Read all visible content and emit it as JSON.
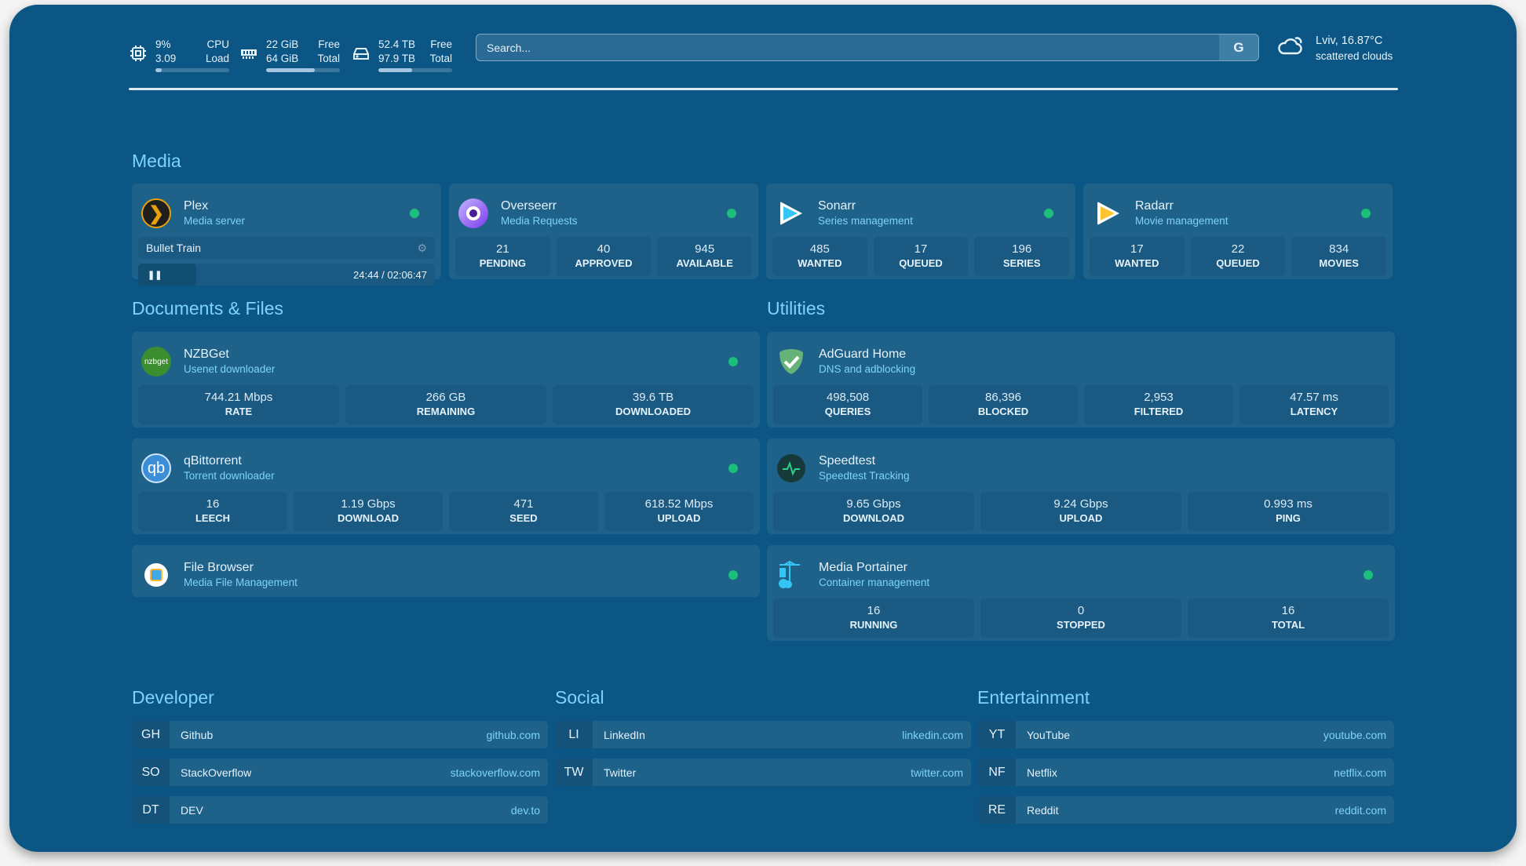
{
  "header": {
    "cpu": {
      "percent": "9%",
      "load": "3.09",
      "label1": "CPU",
      "label2": "Load",
      "fill": 0.09
    },
    "memory": {
      "free": "22 GiB",
      "total": "64 GiB",
      "label1": "Free",
      "label2": "Total",
      "fill": 0.66
    },
    "disk": {
      "free": "52.4 TB",
      "total": "97.9 TB",
      "label1": "Free",
      "label2": "Total",
      "fill": 0.46
    },
    "search": {
      "placeholder": "Search...",
      "engine_label": "G"
    },
    "weather": {
      "location_temp": "Lviv, 16.87°C",
      "condition": "scattered clouds",
      "icon": "cloud-sun-icon"
    }
  },
  "colors": {
    "background": "#0b5684",
    "card": "#1e6189",
    "accent": "#7dd3fc",
    "status_online": "#1bbf7a"
  },
  "sections": {
    "media": "Media",
    "documents": "Documents & Files",
    "utilities": "Utilities",
    "developer": "Developer",
    "social": "Social",
    "entertainment": "Entertainment"
  },
  "plex": {
    "name": "Plex",
    "desc": "Media server",
    "now_playing": "Bullet Train",
    "time": "24:44 / 02:06:47",
    "progress": 0.195
  },
  "media_cards": [
    {
      "name": "Overseerr",
      "desc": "Media Requests",
      "stats": [
        {
          "v": "21",
          "l": "PENDING"
        },
        {
          "v": "40",
          "l": "APPROVED"
        },
        {
          "v": "945",
          "l": "AVAILABLE"
        }
      ]
    },
    {
      "name": "Sonarr",
      "desc": "Series management",
      "stats": [
        {
          "v": "485",
          "l": "WANTED"
        },
        {
          "v": "17",
          "l": "QUEUED"
        },
        {
          "v": "196",
          "l": "SERIES"
        }
      ]
    },
    {
      "name": "Radarr",
      "desc": "Movie management",
      "stats": [
        {
          "v": "17",
          "l": "WANTED"
        },
        {
          "v": "22",
          "l": "QUEUED"
        },
        {
          "v": "834",
          "l": "MOVIES"
        }
      ]
    }
  ],
  "doc_cards": [
    {
      "name": "NZBGet",
      "desc": "Usenet downloader",
      "icon_text": "nzbget",
      "stats": [
        {
          "v": "744.21 Mbps",
          "l": "RATE"
        },
        {
          "v": "266 GB",
          "l": "REMAINING"
        },
        {
          "v": "39.6 TB",
          "l": "DOWNLOADED"
        }
      ]
    },
    {
      "name": "qBittorrent",
      "desc": "Torrent downloader",
      "icon_text": "qb",
      "stats": [
        {
          "v": "16",
          "l": "LEECH"
        },
        {
          "v": "1.19 Gbps",
          "l": "DOWNLOAD"
        },
        {
          "v": "471",
          "l": "SEED"
        },
        {
          "v": "618.52 Mbps",
          "l": "UPLOAD"
        }
      ]
    },
    {
      "name": "File Browser",
      "desc": "Media File Management",
      "stats": []
    }
  ],
  "util_cards": [
    {
      "name": "AdGuard Home",
      "desc": "DNS and adblocking",
      "stats": [
        {
          "v": "498,508",
          "l": "QUERIES"
        },
        {
          "v": "86,396",
          "l": "BLOCKED"
        },
        {
          "v": "2,953",
          "l": "FILTERED"
        },
        {
          "v": "47.57 ms",
          "l": "LATENCY"
        }
      ]
    },
    {
      "name": "Speedtest",
      "desc": "Speedtest Tracking",
      "stats": [
        {
          "v": "9.65 Gbps",
          "l": "DOWNLOAD"
        },
        {
          "v": "9.24 Gbps",
          "l": "UPLOAD"
        },
        {
          "v": "0.993 ms",
          "l": "PING"
        }
      ]
    },
    {
      "name": "Media Portainer",
      "desc": "Container management",
      "stats": [
        {
          "v": "16",
          "l": "RUNNING"
        },
        {
          "v": "0",
          "l": "STOPPED"
        },
        {
          "v": "16",
          "l": "TOTAL"
        }
      ]
    }
  ],
  "bookmarks": {
    "developer": [
      {
        "abbr": "GH",
        "name": "Github",
        "url": "github.com"
      },
      {
        "abbr": "SO",
        "name": "StackOverflow",
        "url": "stackoverflow.com"
      },
      {
        "abbr": "DT",
        "name": "DEV",
        "url": "dev.to"
      }
    ],
    "social": [
      {
        "abbr": "LI",
        "name": "LinkedIn",
        "url": "linkedin.com"
      },
      {
        "abbr": "TW",
        "name": "Twitter",
        "url": "twitter.com"
      }
    ],
    "entertainment": [
      {
        "abbr": "YT",
        "name": "YouTube",
        "url": "youtube.com"
      },
      {
        "abbr": "NF",
        "name": "Netflix",
        "url": "netflix.com"
      },
      {
        "abbr": "RE",
        "name": "Reddit",
        "url": "reddit.com"
      }
    ]
  }
}
